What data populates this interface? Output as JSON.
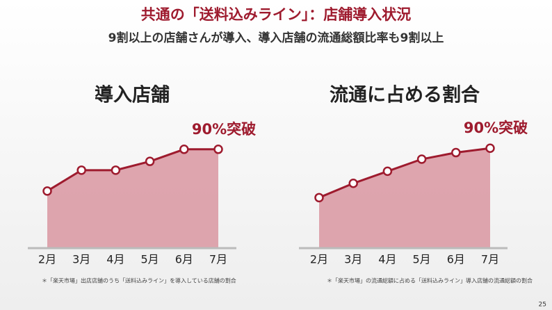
{
  "header": {
    "title": "共通の「送料込みライン」：店舗導入状況",
    "subtitle": "9割以上の店舗さんが導入、導入店舗の流通総額比率も9割以上"
  },
  "chart_data": [
    {
      "type": "area",
      "title": "導入店舗",
      "categories": [
        "2月",
        "3月",
        "4月",
        "5月",
        "6月",
        "7月"
      ],
      "values": [
        52,
        71,
        71,
        79,
        90,
        90
      ],
      "color": "#9e1b2e",
      "fill": "#d68a96",
      "annotation": "90%突破",
      "footnote": "＊「楽天市場」出店店舗のうち「送料込みライン」を導入している店舗の割合"
    },
    {
      "type": "area",
      "title": "流通に占める割合",
      "categories": [
        "2月",
        "3月",
        "4月",
        "5月",
        "6月",
        "7月"
      ],
      "values": [
        46,
        59,
        70,
        81,
        87,
        91
      ],
      "color": "#9e1b2e",
      "fill": "#d68a96",
      "annotation": "90%突破",
      "footnote": "＊「楽天市場」の流通総額に占める「送料込みライン」導入店舗の流通総額の割合"
    }
  ],
  "page_number": "25"
}
